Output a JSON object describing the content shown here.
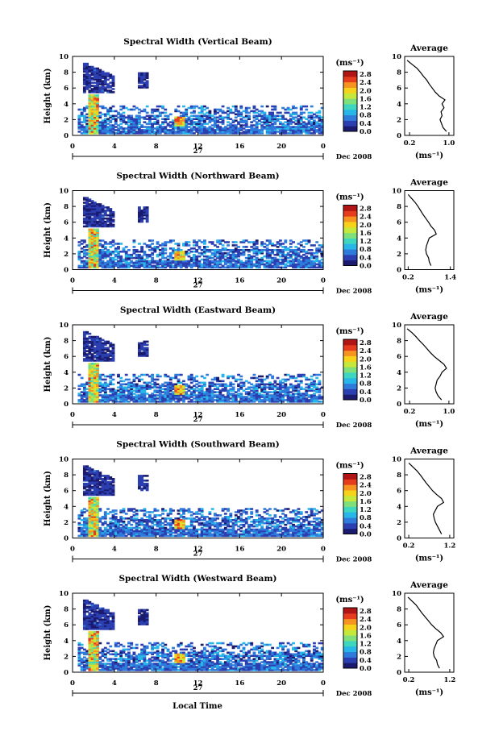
{
  "figure": {
    "xlabel": "Local Time",
    "date_label": "Dec 2008",
    "day_label": "27",
    "ylabel": "Height (km)",
    "unit_label": "(ms⁻¹)",
    "average_title": "Average"
  },
  "colorscale": {
    "ticks": [
      "2.8",
      "2.4",
      "2.0",
      "1.6",
      "1.2",
      "0.8",
      "0.4",
      "0.0"
    ],
    "colors": [
      "#1a1a6e",
      "#2b3fb0",
      "#2f7bdc",
      "#27b6e8",
      "#3fd6c0",
      "#7fe07a",
      "#c6e83c",
      "#f7d21b",
      "#f79321",
      "#e63c1e",
      "#b01414"
    ]
  },
  "chart_data": [
    {
      "type": "heatmap",
      "title": "Spectral Width (Vertical Beam)",
      "x_ticks": [
        "0",
        "4",
        "8",
        "12",
        "16",
        "20",
        "0"
      ],
      "xlim": [
        0,
        24
      ],
      "y_ticks": [
        "0",
        "2",
        "4",
        "6",
        "8",
        "10"
      ],
      "ylim": [
        0,
        10
      ],
      "zlim": [
        0.0,
        3.0
      ],
      "profile": {
        "title": "Average",
        "x_ticks": [
          "0.2",
          "1.0"
        ],
        "xlim": [
          0.1,
          1.1
        ],
        "xlabel": "(ms⁻¹)",
        "heights": [
          0.5,
          1,
          1.5,
          2,
          2.5,
          3,
          3.5,
          4,
          4.5,
          5,
          5.5,
          6,
          6.5,
          7,
          7.5,
          8,
          8.5,
          9,
          9.5
        ],
        "values": [
          0.95,
          0.88,
          0.85,
          0.82,
          0.86,
          0.84,
          0.9,
          0.86,
          0.92,
          0.8,
          0.72,
          0.66,
          0.6,
          0.55,
          0.48,
          0.42,
          0.35,
          0.25,
          0.15
        ]
      }
    },
    {
      "type": "heatmap",
      "title": "Spectral Width (Northward Beam)",
      "x_ticks": [
        "0",
        "4",
        "8",
        "12",
        "16",
        "20",
        "0"
      ],
      "xlim": [
        0,
        24
      ],
      "y_ticks": [
        "0",
        "2",
        "4",
        "6",
        "8",
        "10"
      ],
      "ylim": [
        0,
        10
      ],
      "zlim": [
        0.0,
        3.0
      ],
      "profile": {
        "title": "Average",
        "x_ticks": [
          "0.2",
          "1.4"
        ],
        "xlim": [
          0.1,
          1.5
        ],
        "xlabel": "(ms⁻¹)",
        "heights": [
          0.5,
          1,
          1.5,
          2,
          2.5,
          3,
          3.5,
          4,
          4.5,
          5,
          5.5,
          6,
          6.5,
          7,
          7.5,
          8,
          8.5,
          9,
          9.5
        ],
        "values": [
          0.85,
          0.8,
          0.78,
          0.72,
          0.7,
          0.72,
          0.76,
          0.8,
          1.0,
          0.95,
          0.85,
          0.78,
          0.7,
          0.62,
          0.55,
          0.48,
          0.4,
          0.3,
          0.2
        ]
      }
    },
    {
      "type": "heatmap",
      "title": "Spectral Width (Eastward Beam)",
      "x_ticks": [
        "0",
        "4",
        "8",
        "12",
        "16",
        "20",
        "0"
      ],
      "xlim": [
        0,
        24
      ],
      "y_ticks": [
        "0",
        "2",
        "4",
        "6",
        "8",
        "10"
      ],
      "ylim": [
        0,
        10
      ],
      "zlim": [
        0.0,
        3.0
      ],
      "profile": {
        "title": "Average",
        "x_ticks": [
          "0.2",
          "1.0"
        ],
        "xlim": [
          0.1,
          1.1
        ],
        "xlabel": "(ms⁻¹)",
        "heights": [
          0.5,
          1,
          1.5,
          2,
          2.5,
          3,
          3.5,
          4,
          4.5,
          5,
          5.5,
          6,
          6.5,
          7,
          7.5,
          8,
          8.5,
          9,
          9.5
        ],
        "values": [
          0.85,
          0.78,
          0.74,
          0.72,
          0.74,
          0.76,
          0.82,
          0.86,
          0.95,
          0.9,
          0.8,
          0.7,
          0.62,
          0.55,
          0.48,
          0.4,
          0.33,
          0.25,
          0.15
        ]
      }
    },
    {
      "type": "heatmap",
      "title": "Spectral Width (Southward Beam)",
      "x_ticks": [
        "0",
        "4",
        "8",
        "12",
        "16",
        "20",
        "0"
      ],
      "xlim": [
        0,
        24
      ],
      "y_ticks": [
        "0",
        "2",
        "4",
        "6",
        "8",
        "10"
      ],
      "ylim": [
        0,
        10
      ],
      "zlim": [
        0.0,
        3.0
      ],
      "profile": {
        "title": "Average",
        "x_ticks": [
          "0.2",
          "1.2"
        ],
        "xlim": [
          0.1,
          1.3
        ],
        "xlabel": "(ms⁻¹)",
        "heights": [
          0.5,
          1,
          1.5,
          2,
          2.5,
          3,
          3.5,
          4,
          4.5,
          5,
          5.5,
          6,
          6.5,
          7,
          7.5,
          8,
          8.5,
          9,
          9.5
        ],
        "values": [
          1.0,
          0.95,
          0.9,
          0.85,
          0.82,
          0.8,
          0.85,
          0.9,
          1.05,
          1.0,
          0.88,
          0.78,
          0.7,
          0.62,
          0.55,
          0.48,
          0.4,
          0.3,
          0.2
        ]
      }
    },
    {
      "type": "heatmap",
      "title": "Spectral Width (Westward Beam)",
      "x_ticks": [
        "0",
        "4",
        "8",
        "12",
        "16",
        "20",
        "0"
      ],
      "xlim": [
        0,
        24
      ],
      "y_ticks": [
        "0",
        "2",
        "4",
        "6",
        "8",
        "10"
      ],
      "ylim": [
        0,
        10
      ],
      "zlim": [
        0.0,
        3.0
      ],
      "profile": {
        "title": "Average",
        "x_ticks": [
          "0.2",
          "1.2"
        ],
        "xlim": [
          0.1,
          1.3
        ],
        "xlabel": "(ms⁻¹)",
        "heights": [
          0.5,
          1,
          1.5,
          2,
          2.5,
          3,
          3.5,
          4,
          4.5,
          5,
          5.5,
          6,
          6.5,
          7,
          7.5,
          8,
          8.5,
          9,
          9.5
        ],
        "values": [
          0.95,
          0.9,
          0.88,
          0.82,
          0.8,
          0.82,
          0.86,
          0.9,
          1.05,
          0.98,
          0.86,
          0.76,
          0.68,
          0.6,
          0.52,
          0.45,
          0.38,
          0.28,
          0.18
        ]
      }
    }
  ]
}
